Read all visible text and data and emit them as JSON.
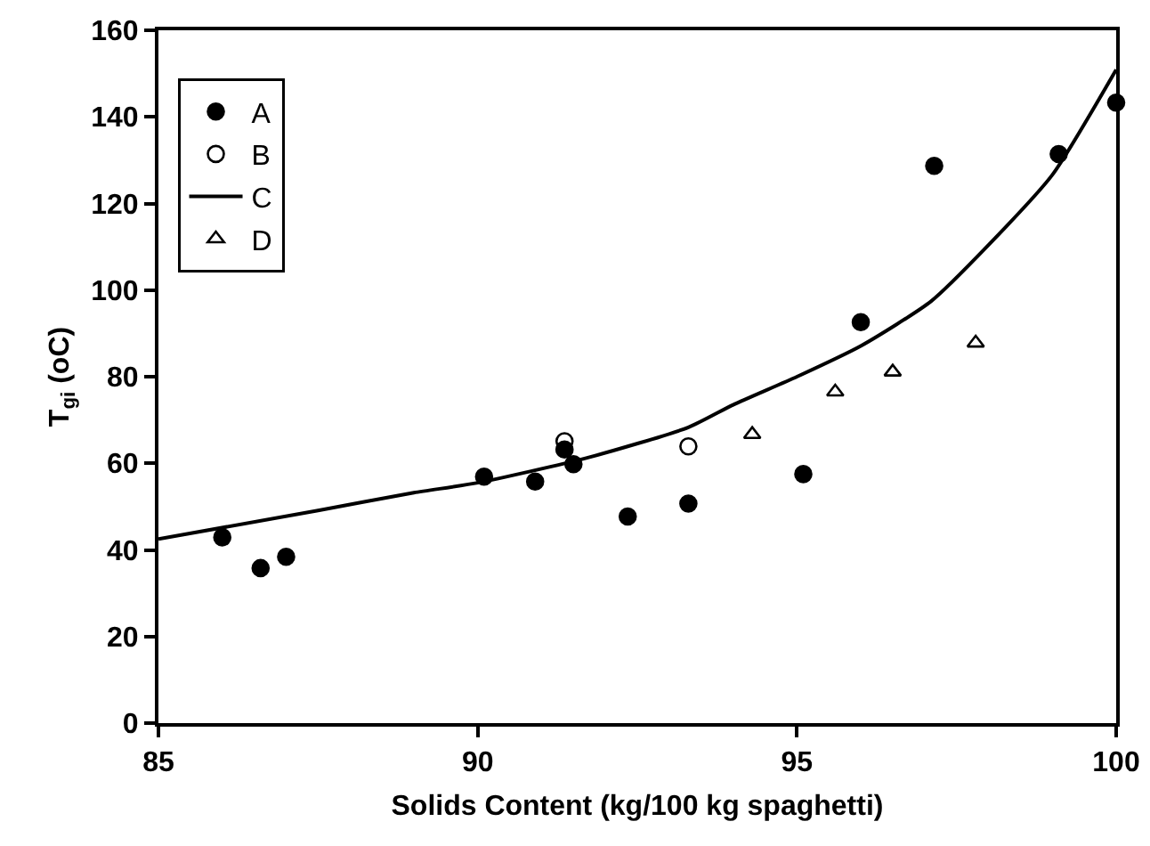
{
  "chart_data": {
    "type": "scatter",
    "xlabel": "Solids Content (kg/100 kg spaghetti)",
    "ylabel": "T$_{gi}$ (oC)",
    "xlim": [
      85,
      100
    ],
    "xticks": [
      85,
      90,
      95,
      100
    ],
    "ylim": [
      0,
      160
    ],
    "yticks": [
      0,
      20,
      40,
      60,
      80,
      100,
      120,
      140,
      160
    ],
    "grid": false,
    "legend": "top left",
    "series": [
      {
        "name": "A",
        "type": "scatter",
        "marker": "circle",
        "color": "#000000",
        "x": [
          86.0,
          86.6,
          87.0,
          90.1,
          90.9,
          91.36,
          91.5,
          92.35,
          93.3,
          95.1,
          96.0,
          97.15,
          99.1,
          100.0
        ],
        "values": [
          42.9,
          35.8,
          38.4,
          56.9,
          55.8,
          63.2,
          59.8,
          47.7,
          50.7,
          57.5,
          92.6,
          128.7,
          131.4,
          143.3
        ]
      },
      {
        "name": "B",
        "type": "scatter",
        "marker": "circle-open",
        "color": "#000000",
        "x": [
          91.36,
          93.3
        ],
        "values": [
          65.1,
          63.9
        ]
      },
      {
        "name": "C",
        "type": "line",
        "marker": "none",
        "line_style": "solid",
        "color": "#000000",
        "x": [
          85,
          87.5,
          89,
          90,
          91.7,
          93.3,
          94,
          95,
          96,
          97.1,
          98,
          99,
          100
        ],
        "values": [
          42.5,
          49.1,
          53.2,
          55.5,
          61.2,
          68.3,
          73.5,
          80.0,
          87.1,
          97.4,
          110.4,
          126.6,
          150.9
        ]
      },
      {
        "name": "D",
        "type": "scatter",
        "marker": "triangle-open",
        "color": "#000000",
        "x": [
          94.3,
          95.6,
          96.5,
          97.8
        ],
        "values": [
          66.7,
          76.5,
          81.1,
          87.8
        ]
      }
    ]
  }
}
